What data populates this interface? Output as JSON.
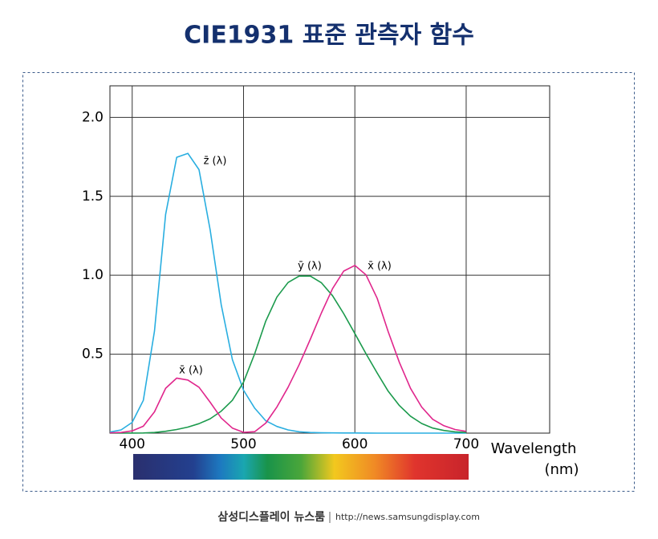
{
  "chart_data": {
    "type": "line",
    "title": "CIE1931 표준 관측자 함수",
    "x": [
      380,
      390,
      400,
      410,
      420,
      430,
      440,
      450,
      460,
      470,
      480,
      490,
      500,
      510,
      520,
      530,
      540,
      550,
      560,
      570,
      580,
      590,
      600,
      610,
      620,
      630,
      640,
      650,
      660,
      670,
      680,
      690,
      700
    ],
    "series": [
      {
        "name": "z̄ (λ)",
        "color": "#29aee0",
        "values": [
          0.0065,
          0.0201,
          0.0679,
          0.2074,
          0.6456,
          1.3856,
          1.7471,
          1.7721,
          1.6692,
          1.2876,
          0.813,
          0.4652,
          0.272,
          0.1582,
          0.0782,
          0.0422,
          0.0203,
          0.0087,
          0.0039,
          0.0021,
          0.0017,
          0.0011,
          0.0008,
          0.0003,
          0.0002,
          0,
          0,
          0,
          0,
          0,
          0,
          0,
          0
        ]
      },
      {
        "name": "ȳ (λ)",
        "color": "#1b9a4c",
        "values": [
          0,
          0.0001,
          0.0004,
          0.0012,
          0.004,
          0.0116,
          0.023,
          0.038,
          0.06,
          0.091,
          0.139,
          0.208,
          0.323,
          0.503,
          0.71,
          0.862,
          0.954,
          0.995,
          0.995,
          0.952,
          0.87,
          0.757,
          0.631,
          0.503,
          0.381,
          0.265,
          0.175,
          0.107,
          0.061,
          0.032,
          0.017,
          0.0082,
          0.0041
        ]
      },
      {
        "name": "x̄ (λ)",
        "color": "#e0268c",
        "values": [
          0.0014,
          0.0042,
          0.0143,
          0.0435,
          0.1344,
          0.2839,
          0.3483,
          0.3362,
          0.2908,
          0.1954,
          0.0956,
          0.032,
          0.0049,
          0.0093,
          0.0633,
          0.1655,
          0.2904,
          0.4334,
          0.5945,
          0.7621,
          0.9163,
          1.0263,
          1.0622,
          1.0026,
          0.8544,
          0.6424,
          0.4479,
          0.2835,
          0.1649,
          0.0874,
          0.0468,
          0.0227,
          0.0114
        ]
      }
    ],
    "annotations": [
      "x̄ (λ)"
    ],
    "x_label": [
      "Wavelength",
      "(nm)"
    ],
    "xlim": [
      380,
      775
    ],
    "ylim": [
      0,
      2.2
    ],
    "xticks": [
      400,
      500,
      600,
      700
    ],
    "yticks": [
      0.5,
      {
        "value": 1,
        "label": "1.0"
      },
      1.5,
      {
        "value": 2,
        "label": "2.0"
      }
    ],
    "grid": true
  },
  "footer": {
    "brand": "삼성디스플레이 뉴스룸",
    "url": "http://news.samsungdisplay.com"
  }
}
